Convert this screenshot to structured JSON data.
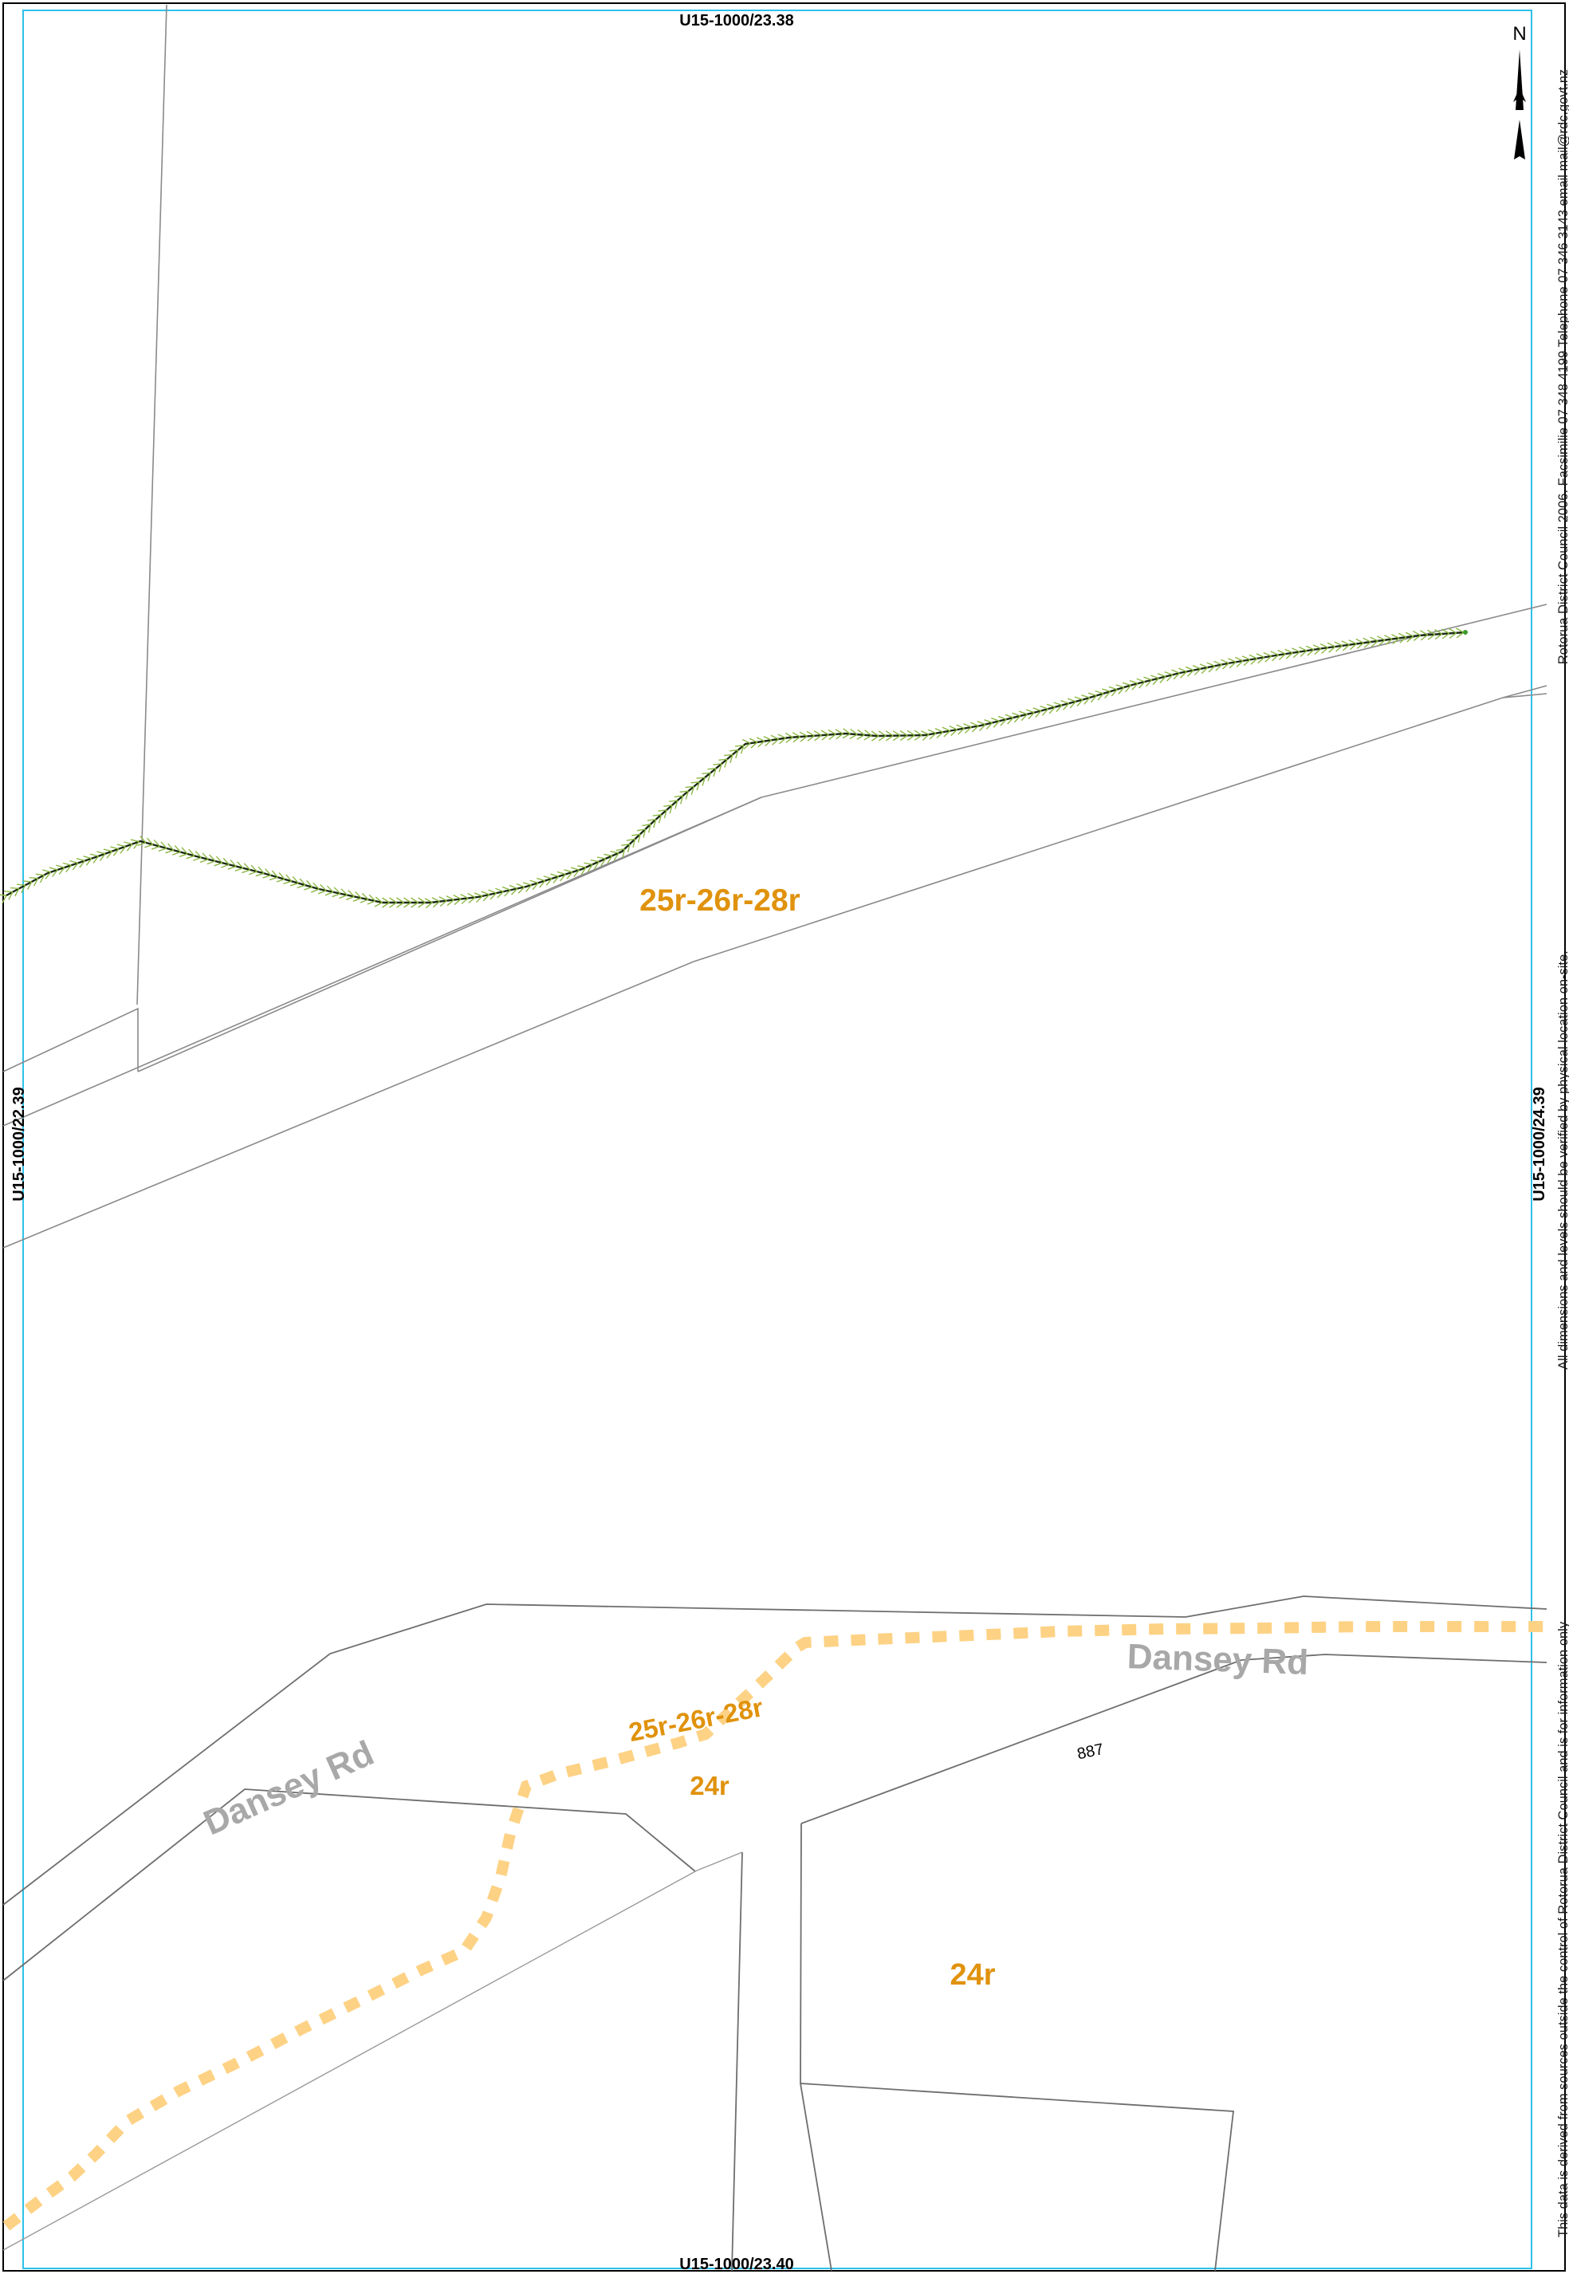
{
  "map": {
    "sheet_refs": {
      "top": "U15-1000/23.38",
      "bottom": "U15-1000/23.40",
      "left": "U15-1000/22.39",
      "right": "U15-1000/24.39"
    },
    "north_arrow_label": "N",
    "zone_labels": {
      "upper": "25r-26r-28r",
      "middle_line1": "25r-26r-28r",
      "middle_line2": "24r",
      "lower": "24r"
    },
    "road_labels": {
      "left": "Dansey Rd",
      "right": "Dansey Rd"
    },
    "parcel_number": "887",
    "disclaimer": {
      "copyright": "Rotorua District Council 2006. Facsimilie 07 348 4199 Telephone 07 346 3143 email mail@rdc.govt.nz",
      "dimensions": "All dimensions and levels should be verified by physical location on-site.",
      "source": "This data is derived from sources outside the control of Rotorua District Council and is for information only"
    },
    "colors": {
      "frame": "#2ec1ea",
      "zone_boundary": "#fdd285",
      "zone_text": "#e0920c",
      "road_text": "#a8a8a8",
      "fence_line": "#1b2a10",
      "fence_hatch": "#8cb845"
    }
  }
}
